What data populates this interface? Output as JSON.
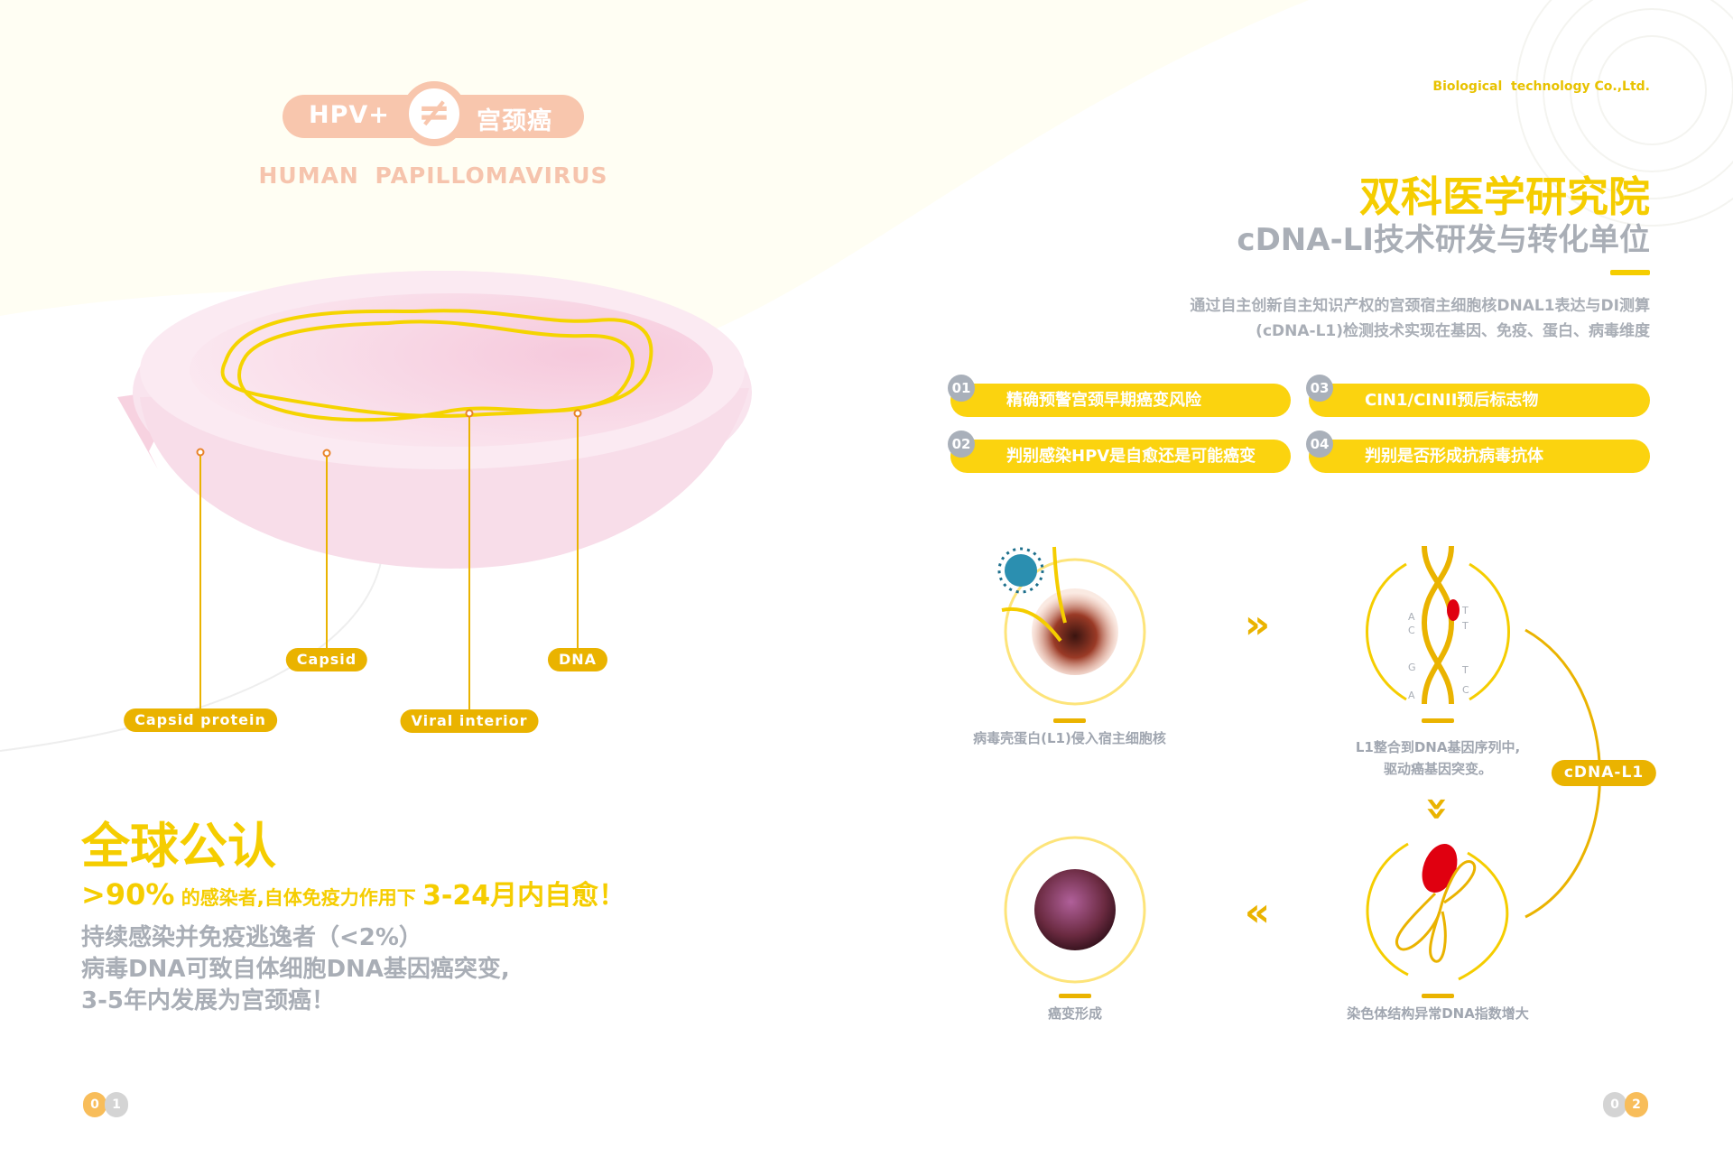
{
  "colors": {
    "accent_yellow": "#f5cd00",
    "label_gold": "#eab300",
    "peach": "#f8c6ad",
    "gray_text": "#a9aeb6",
    "cream_bg": "#fffef3"
  },
  "left": {
    "hpv_pill": {
      "left": "HPV+",
      "symbol": "≠",
      "right": "宫颈癌"
    },
    "subtitle_en": "HUMAN  PAPILLOMAVIRUS",
    "labels": {
      "capsid_protein": "Capsid  protein",
      "capsid": "Capsid",
      "viral_interior": "Viral  interior",
      "dna": "DNA"
    },
    "headline": "全球公认",
    "stat_line": {
      "percent": ">90%",
      "middle": " 的感染者,自体免疫力作用下 ",
      "highlight": "3-24月内自愈！"
    },
    "warning_lines": [
      "持续感染并免疫逃逸者（<2%）",
      "病毒DNA可致自体细胞DNA基因癌突变,",
      "3-5年内发展为宫颈癌！"
    ],
    "page_number": [
      "0",
      "1"
    ]
  },
  "right": {
    "company": "Biological  technology Co.,Ltd.",
    "title": "双科医学研究院",
    "subtitle": "cDNA-LI技术研发与转化单位",
    "description": [
      "通过自主创新自主知识产权的宫颈宿主细胞核DNAL1表达与DI测算",
      "(cDNA-L1)检测技术实现在基因、免疫、蛋白、病毒维度"
    ],
    "features": [
      {
        "num": "01",
        "text": "精确预警宫颈早期癌变风险"
      },
      {
        "num": "02",
        "text": "判别感染HPV是自愈还是可能癌变"
      },
      {
        "num": "03",
        "text": "CIN1/CINII预后标志物"
      },
      {
        "num": "04",
        "text": "判别是否形成抗病毒抗体"
      }
    ],
    "steps": {
      "step1": "病毒壳蛋白(L1)侵入宿主细胞核",
      "step2": [
        "L1整合到DNA基因序列中,",
        "驱动癌基因突变。"
      ],
      "step3": "染色体结构异常DNA指数增大",
      "step4": "癌变形成"
    },
    "dna_bases_left": [
      "A",
      "C",
      "G",
      "A"
    ],
    "dna_bases_right": [
      "T",
      "T",
      "T",
      "C"
    ],
    "cycle_badge": "cDNA-L1",
    "arrows": {
      "right": "»",
      "down": "»",
      "left": "«"
    },
    "page_number": [
      "0",
      "2"
    ]
  }
}
